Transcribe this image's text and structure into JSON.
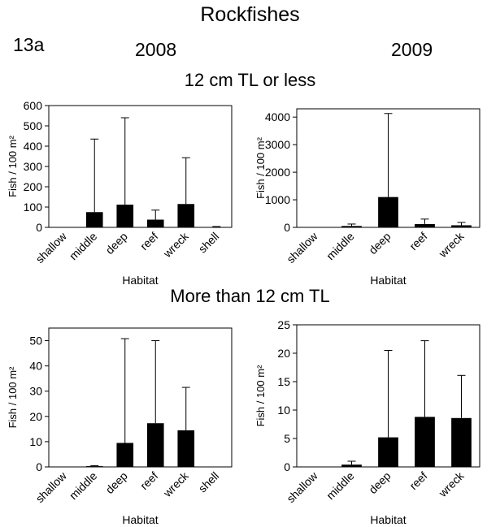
{
  "figure": {
    "title": "Rockfishes",
    "label": "13a",
    "columns": [
      "2008",
      "2009"
    ],
    "rows": [
      "12 cm TL or less",
      "More than 12 cm TL"
    ]
  },
  "chart_data": [
    {
      "type": "bar",
      "year": "2008",
      "size_class": "12 cm TL or less",
      "categories": [
        "shallow",
        "middle",
        "deep",
        "reef",
        "wreck",
        "shell"
      ],
      "values": [
        0,
        75,
        112,
        38,
        115,
        2
      ],
      "error_upper": [
        0,
        435,
        540,
        85,
        343,
        4
      ],
      "xlabel": "Habitat",
      "ylabel": "Fish / 100 m²",
      "ylim": [
        0,
        600
      ],
      "yticks": [
        0,
        100,
        200,
        300,
        400,
        500,
        600
      ]
    },
    {
      "type": "bar",
      "year": "2009",
      "size_class": "12 cm TL or less",
      "categories": [
        "shallow",
        "middle",
        "deep",
        "reef",
        "wreck"
      ],
      "values": [
        0,
        50,
        1100,
        120,
        75
      ],
      "error_upper": [
        0,
        120,
        4130,
        300,
        180
      ],
      "xlabel": "Habitat",
      "ylabel": "Fish / 100 m²",
      "ylim": [
        0,
        4300
      ],
      "yticks": [
        0,
        1000,
        2000,
        3000,
        4000
      ]
    },
    {
      "type": "bar",
      "year": "2008",
      "size_class": "More than 12 cm TL",
      "categories": [
        "shallow",
        "middle",
        "deep",
        "reef",
        "wreck",
        "shell"
      ],
      "values": [
        0,
        0.3,
        9.5,
        17.3,
        14.5,
        0
      ],
      "error_upper": [
        0,
        0.5,
        50.8,
        50,
        31.5,
        0
      ],
      "xlabel": "Habitat",
      "ylabel": "Fish / 100 m²",
      "ylim": [
        0,
        55
      ],
      "yticks": [
        0,
        10,
        20,
        30,
        40,
        50
      ]
    },
    {
      "type": "bar",
      "year": "2009",
      "size_class": "More than 12 cm TL",
      "categories": [
        "shallow",
        "middle",
        "deep",
        "reef",
        "wreck"
      ],
      "values": [
        0,
        0.4,
        5.2,
        8.8,
        8.6
      ],
      "error_upper": [
        0,
        1.0,
        20.5,
        22.2,
        16.1
      ],
      "xlabel": "Habitat",
      "ylabel": "Fish / 100 m²",
      "ylim": [
        0,
        25
      ],
      "yticks": [
        0,
        5,
        10,
        15,
        20,
        25
      ]
    }
  ]
}
